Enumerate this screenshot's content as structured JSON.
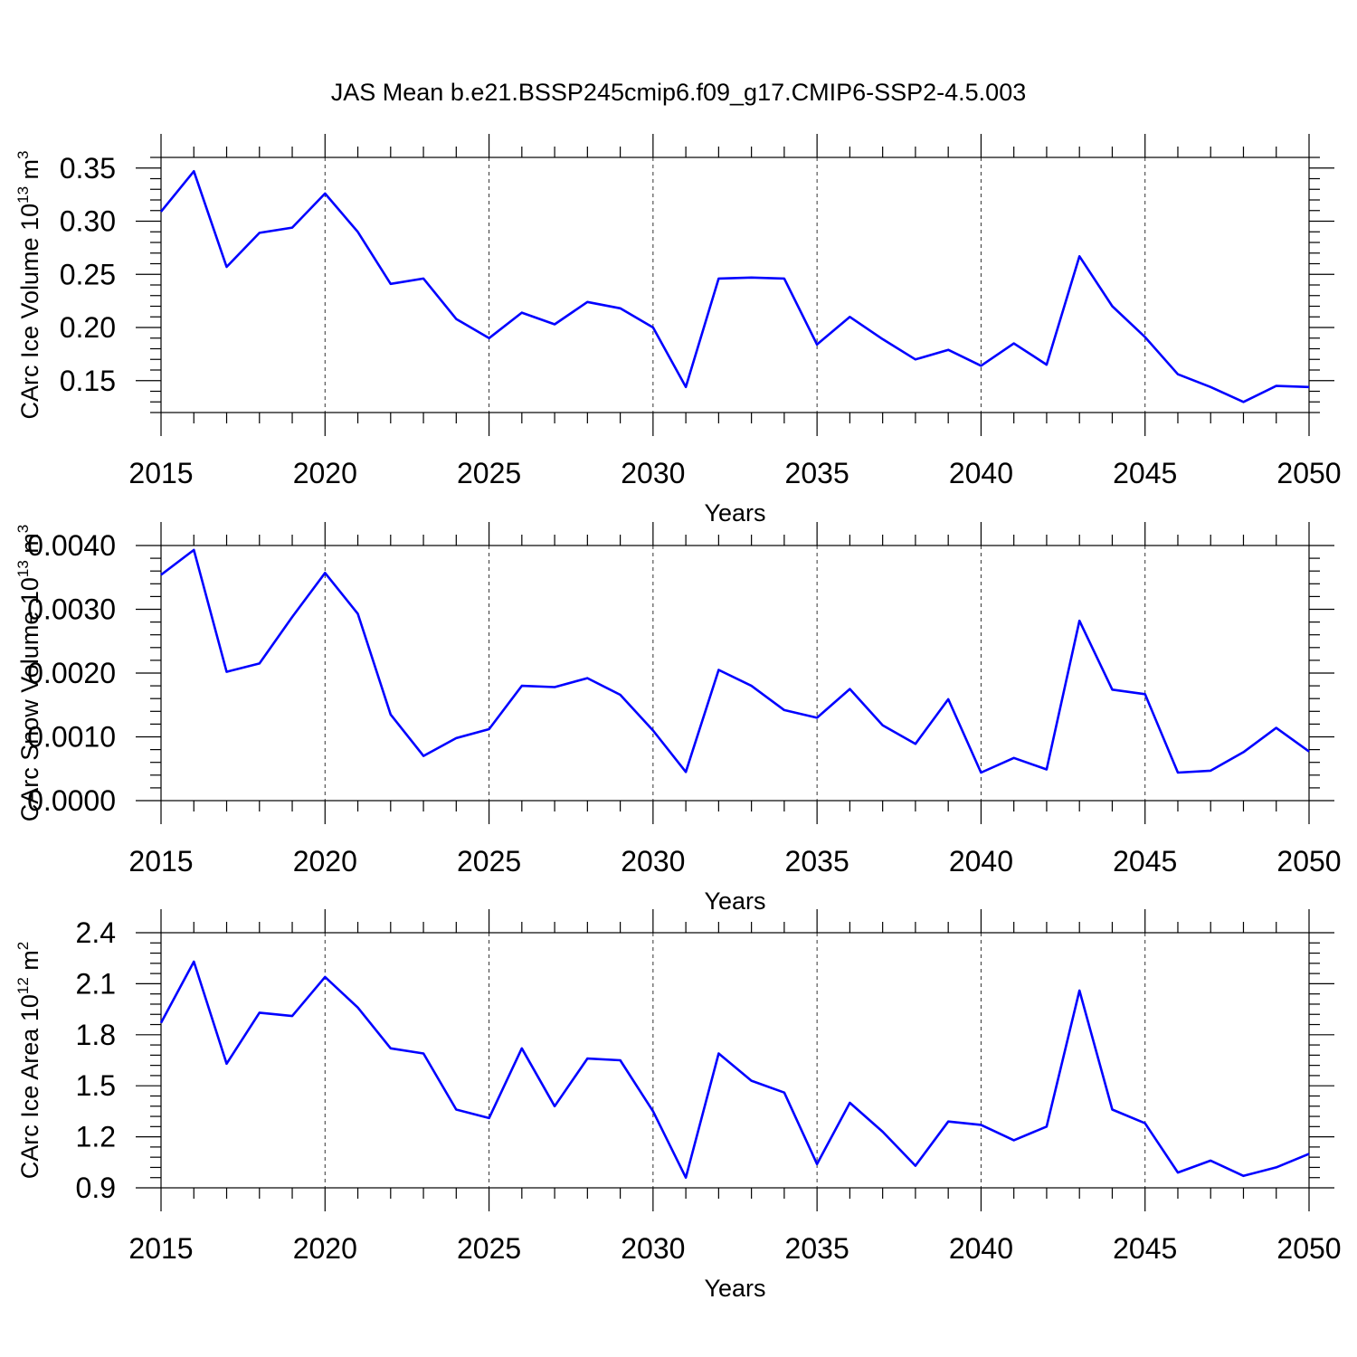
{
  "title": "JAS Mean b.e21.BSSP245cmip6.f09_g17.CMIP6-SSP2-4.5.003",
  "colors": {
    "line": "#0000ff",
    "axis": "#000000"
  },
  "chart_data": [
    {
      "type": "line",
      "xlabel": "Years",
      "ylabel_main": "CArc Ice Volume 10",
      "ylabel_sup": "13",
      "ylabel_unit": " m",
      "ylabel_unit_sup": "3",
      "xlim": [
        2015,
        2050
      ],
      "ylim": [
        0.12,
        0.36
      ],
      "xticks": [
        "2015",
        "2020",
        "2025",
        "2030",
        "2035",
        "2040",
        "2045",
        "2050"
      ],
      "yticks": [
        "0.15",
        "0.20",
        "0.25",
        "0.30",
        "0.35"
      ],
      "grid": "dashed vertical at major x ticks",
      "x": [
        2015,
        2016,
        2017,
        2018,
        2019,
        2020,
        2021,
        2022,
        2023,
        2024,
        2025,
        2026,
        2027,
        2028,
        2029,
        2030,
        2031,
        2032,
        2033,
        2034,
        2035,
        2036,
        2037,
        2038,
        2039,
        2040,
        2041,
        2042,
        2043,
        2044,
        2045,
        2046,
        2047,
        2048,
        2049,
        2050
      ],
      "values": [
        0.309,
        0.347,
        0.257,
        0.289,
        0.294,
        0.326,
        0.29,
        0.241,
        0.246,
        0.208,
        0.19,
        0.214,
        0.203,
        0.224,
        0.218,
        0.2,
        0.144,
        0.246,
        0.247,
        0.246,
        0.184,
        0.21,
        0.189,
        0.17,
        0.179,
        0.164,
        0.185,
        0.165,
        0.267,
        0.22,
        0.191,
        0.156,
        0.144,
        0.13,
        0.145,
        0.144
      ]
    },
    {
      "type": "line",
      "xlabel": "Years",
      "ylabel_main": "CArc Snow Volume 10",
      "ylabel_sup": "13",
      "ylabel_unit": " m",
      "ylabel_unit_sup": "3",
      "xlim": [
        2015,
        2050
      ],
      "ylim": [
        0.0,
        0.004
      ],
      "xticks": [
        "2015",
        "2020",
        "2025",
        "2030",
        "2035",
        "2040",
        "2045",
        "2050"
      ],
      "yticks": [
        "0.0000",
        "0.0010",
        "0.0020",
        "0.0030",
        "0.0040"
      ],
      "grid": "dashed vertical at major x ticks",
      "x": [
        2015,
        2016,
        2017,
        2018,
        2019,
        2020,
        2021,
        2022,
        2023,
        2024,
        2025,
        2026,
        2027,
        2028,
        2029,
        2030,
        2031,
        2032,
        2033,
        2034,
        2035,
        2036,
        2037,
        2038,
        2039,
        2040,
        2041,
        2042,
        2043,
        2044,
        2045,
        2046,
        2047,
        2048,
        2049,
        2050
      ],
      "values": [
        0.00354,
        0.00393,
        0.00202,
        0.00215,
        0.00288,
        0.00357,
        0.00293,
        0.00135,
        0.0007,
        0.00098,
        0.00112,
        0.0018,
        0.00178,
        0.00192,
        0.00166,
        0.0011,
        0.00045,
        0.00205,
        0.0018,
        0.00142,
        0.0013,
        0.00175,
        0.00118,
        0.00089,
        0.00159,
        0.00044,
        0.00067,
        0.00049,
        0.00282,
        0.00174,
        0.00167,
        0.00044,
        0.00047,
        0.00076,
        0.00114,
        0.00077
      ]
    },
    {
      "type": "line",
      "xlabel": "Years",
      "ylabel_main": "CArc Ice Area 10",
      "ylabel_sup": "12",
      "ylabel_unit": " m",
      "ylabel_unit_sup": "2",
      "xlim": [
        2015,
        2050
      ],
      "ylim": [
        0.9,
        2.4
      ],
      "xticks": [
        "2015",
        "2020",
        "2025",
        "2030",
        "2035",
        "2040",
        "2045",
        "2050"
      ],
      "yticks": [
        "0.9",
        "1.2",
        "1.5",
        "1.8",
        "2.1",
        "2.4"
      ],
      "grid": "dashed vertical at major x ticks",
      "x": [
        2015,
        2016,
        2017,
        2018,
        2019,
        2020,
        2021,
        2022,
        2023,
        2024,
        2025,
        2026,
        2027,
        2028,
        2029,
        2030,
        2031,
        2032,
        2033,
        2034,
        2035,
        2036,
        2037,
        2038,
        2039,
        2040,
        2041,
        2042,
        2043,
        2044,
        2045,
        2046,
        2047,
        2048,
        2049,
        2050
      ],
      "values": [
        1.87,
        2.23,
        1.63,
        1.93,
        1.91,
        2.14,
        1.96,
        1.72,
        1.69,
        1.36,
        1.31,
        1.72,
        1.38,
        1.66,
        1.65,
        1.35,
        0.96,
        1.69,
        1.53,
        1.46,
        1.04,
        1.4,
        1.23,
        1.03,
        1.29,
        1.27,
        1.18,
        1.26,
        2.06,
        1.36,
        1.28,
        0.99,
        1.06,
        0.97,
        1.02,
        1.1
      ]
    }
  ]
}
